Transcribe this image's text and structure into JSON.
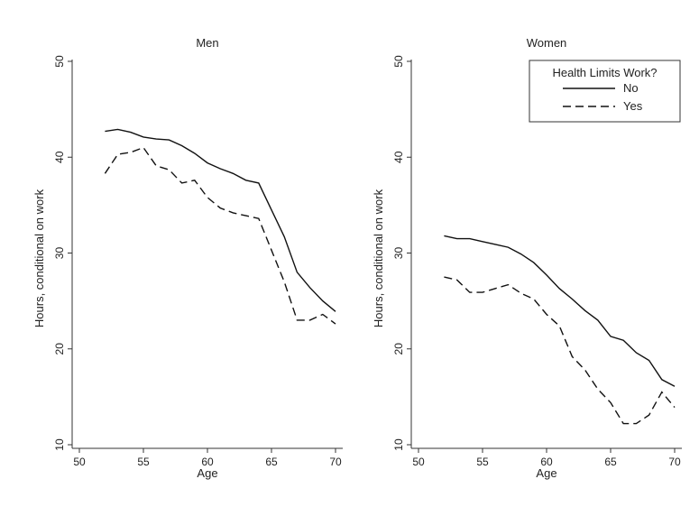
{
  "chart_data": [
    {
      "type": "line",
      "title": "Men",
      "xlabel": "Age",
      "ylabel": "Hours, conditional on work",
      "xlim": [
        50,
        70
      ],
      "ylim": [
        10,
        50
      ],
      "xticks": [
        50,
        55,
        60,
        65,
        70
      ],
      "yticks": [
        10,
        20,
        30,
        40,
        50
      ],
      "series": [
        {
          "name": "No",
          "style": "solid",
          "x": [
            52,
            53,
            54,
            55,
            56,
            57,
            58,
            59,
            60,
            61,
            62,
            63,
            64,
            65,
            66,
            67,
            68,
            69,
            70
          ],
          "values": [
            42.7,
            42.9,
            42.6,
            42.1,
            41.9,
            41.8,
            41.2,
            40.4,
            39.4,
            38.8,
            38.3,
            37.6,
            37.3,
            34.5,
            31.7,
            28.0,
            26.4,
            25.0,
            23.9
          ]
        },
        {
          "name": "Yes",
          "style": "dashed",
          "x": [
            52,
            53,
            54,
            55,
            56,
            57,
            58,
            59,
            60,
            61,
            62,
            63,
            64,
            65,
            66,
            67,
            68,
            69,
            70
          ],
          "values": [
            38.3,
            40.3,
            40.5,
            41.0,
            39.1,
            38.7,
            37.3,
            37.6,
            35.8,
            34.7,
            34.2,
            33.9,
            33.6,
            30.3,
            27.0,
            23.0,
            23.0,
            23.6,
            22.6
          ]
        }
      ]
    },
    {
      "type": "line",
      "title": "Women",
      "xlabel": "Age",
      "ylabel": "Hours, conditional on work",
      "xlim": [
        50,
        70
      ],
      "ylim": [
        10,
        50
      ],
      "xticks": [
        50,
        55,
        60,
        65,
        70
      ],
      "yticks": [
        10,
        20,
        30,
        40,
        50
      ],
      "legend": {
        "title": "Health Limits Work?",
        "placement": "top-right",
        "entries": [
          "No",
          "Yes"
        ]
      },
      "series": [
        {
          "name": "No",
          "style": "solid",
          "x": [
            52,
            53,
            54,
            55,
            56,
            57,
            58,
            59,
            60,
            61,
            62,
            63,
            64,
            65,
            66,
            67,
            68,
            69,
            70
          ],
          "values": [
            31.8,
            31.5,
            31.5,
            31.2,
            30.9,
            30.6,
            29.9,
            29.0,
            27.7,
            26.3,
            25.2,
            24.0,
            23.0,
            21.3,
            20.9,
            19.6,
            18.8,
            16.8,
            16.1
          ]
        },
        {
          "name": "Yes",
          "style": "dashed",
          "x": [
            52,
            53,
            54,
            55,
            56,
            57,
            58,
            59,
            60,
            61,
            62,
            63,
            64,
            65,
            66,
            67,
            68,
            69,
            70
          ],
          "values": [
            27.5,
            27.2,
            25.9,
            25.9,
            26.3,
            26.7,
            25.8,
            25.2,
            23.6,
            22.4,
            19.2,
            17.8,
            15.8,
            14.4,
            12.2,
            12.2,
            13.1,
            15.5,
            13.9
          ]
        }
      ]
    }
  ]
}
